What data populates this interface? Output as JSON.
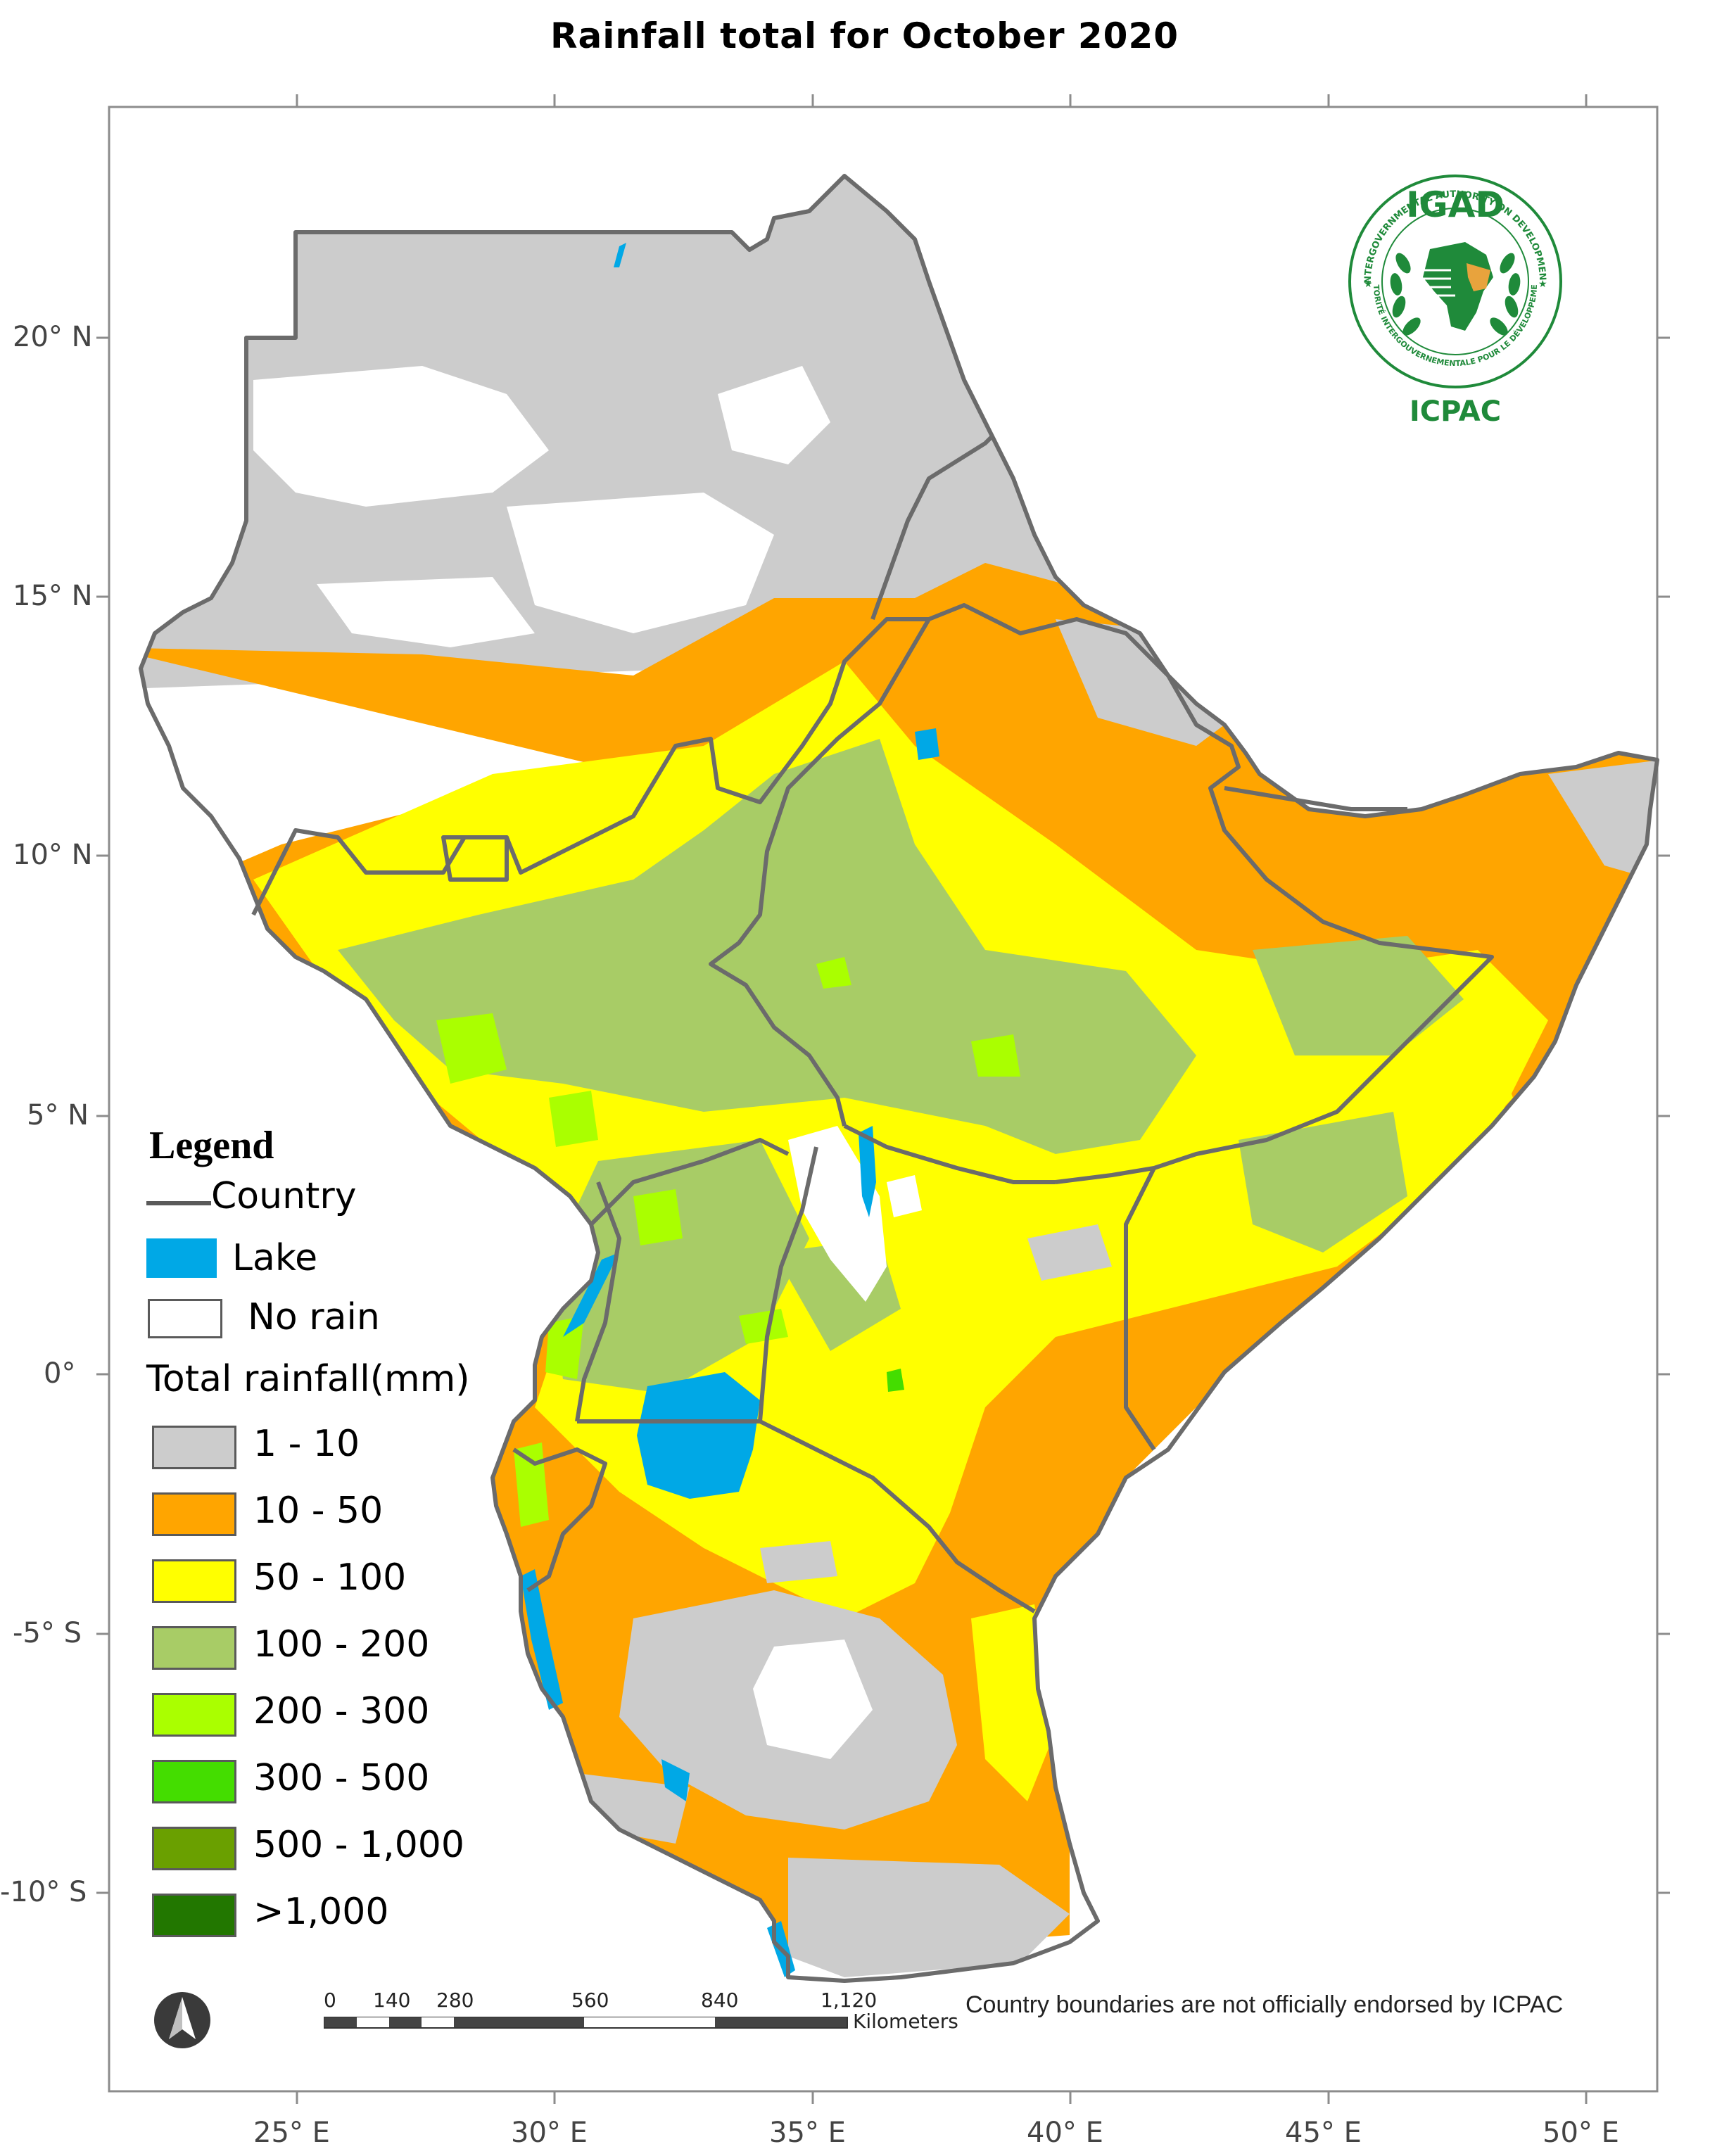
{
  "title": "Rainfall total for October 2020",
  "axes": {
    "x_labels": [
      "25° E",
      "30° E",
      "35° E",
      "40° E",
      "45° E",
      "50° E"
    ],
    "y_labels": [
      "20° N",
      "15° N",
      "10° N",
      "5° N",
      "0°",
      "-5° S",
      "-10° S"
    ]
  },
  "legend": {
    "title": "Legend",
    "country_label": "Country",
    "lake_label": "Lake",
    "no_rain_label": "No rain",
    "rainfall_title": "Total rainfall(mm)",
    "classes": [
      {
        "label": "1 - 10",
        "color": "#cccccc"
      },
      {
        "label": "10 - 50",
        "color": "#ffa500"
      },
      {
        "label": "50 - 100",
        "color": "#ffff00"
      },
      {
        "label": "100 - 200",
        "color": "#a8cc66"
      },
      {
        "label": "200 - 300",
        "color": "#aaff00"
      },
      {
        "label": "300 - 500",
        "color": "#44dd00"
      },
      {
        "label": "500 - 1,000",
        "color": "#6aa000"
      },
      {
        "label": ">1,000",
        "color": "#227700"
      }
    ],
    "lake_color": "#00a8e6",
    "country_line_color": "#6b6b6b"
  },
  "scale_bar": {
    "labels": [
      "0",
      "140",
      "280",
      "560",
      "840",
      "1,120"
    ],
    "unit": "Kilometers"
  },
  "credit": "Country boundaries are not officially endorsed by ICPAC",
  "logo": {
    "top_text": "IGAD",
    "bottom_text": "ICPAC",
    "ring_text_top": "INTERGOVERNMENTAL AUTHORITY ON DEVELOPMENT",
    "ring_text_bottom": "AUTORITÉ INTERGOUVERNEMENTALE POUR LE DÉVELOPPEMENT"
  },
  "north_arrow": "north-arrow-icon"
}
